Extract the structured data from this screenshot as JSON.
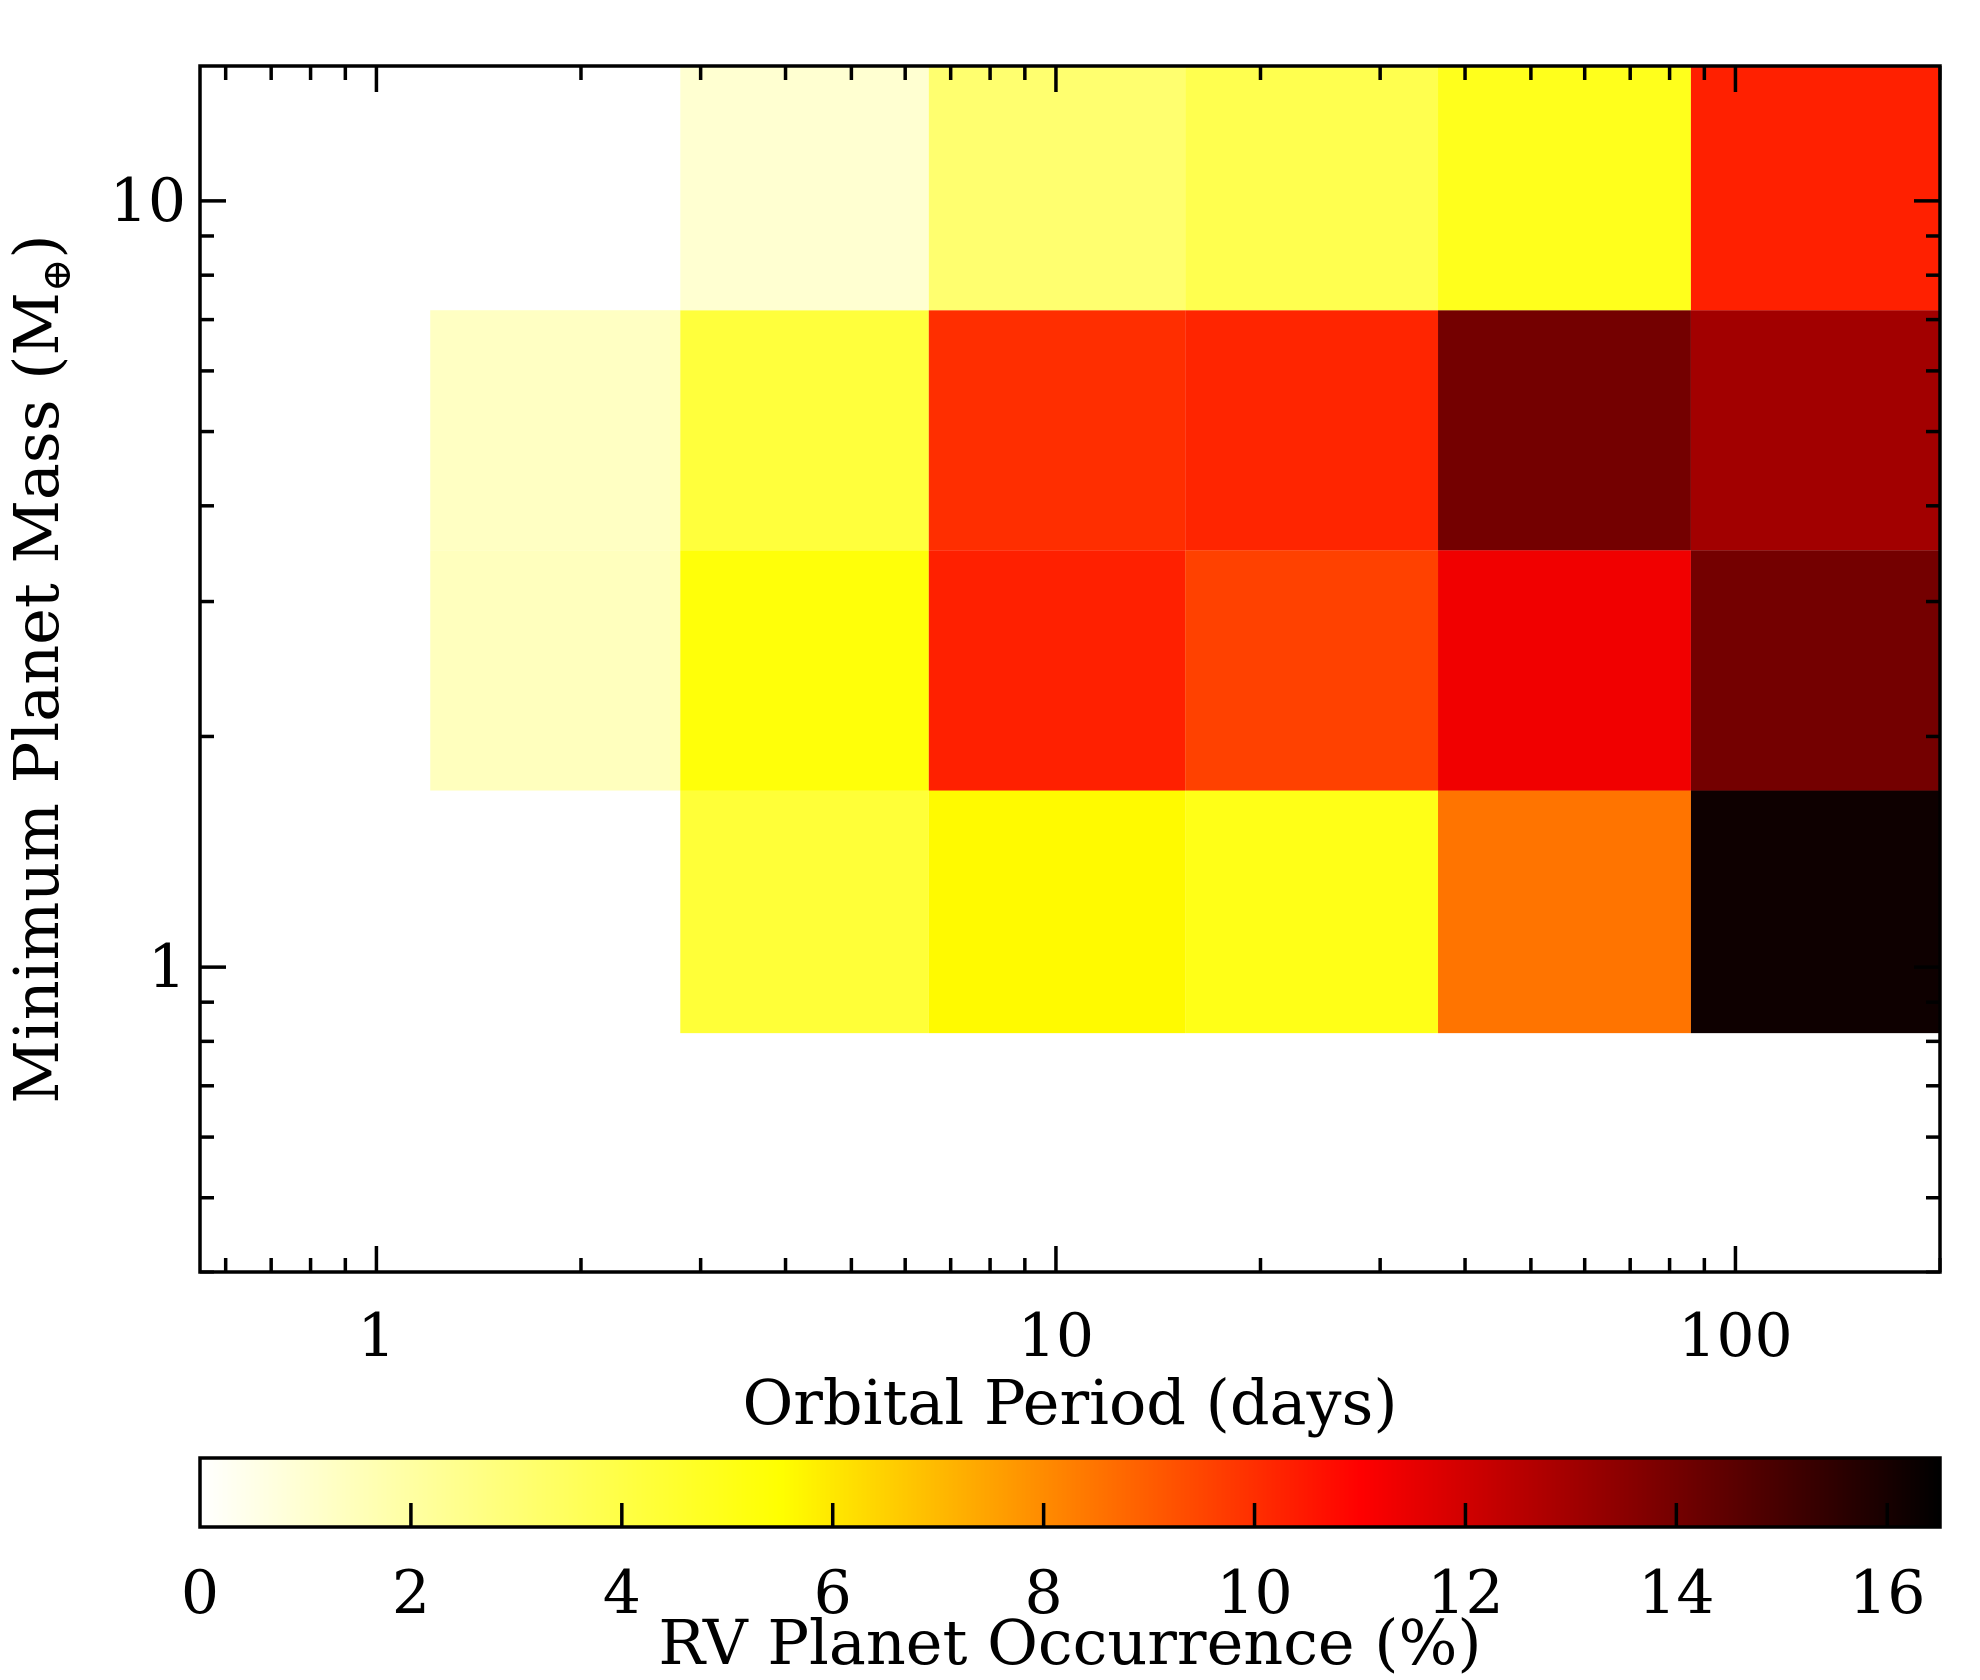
{
  "chart_data": {
    "type": "heatmap",
    "xlabel": "Orbital Period (days)",
    "ylabel": "Minimum Planet Mass (M",
    "ylabel_subscript": "⊕",
    "ylabel_close": ")",
    "xscale": "log",
    "yscale": "log",
    "xlim": [
      0.55,
      200
    ],
    "ylim": [
      0.4,
      15
    ],
    "x_tick_labels": [
      "1",
      "10",
      "100"
    ],
    "y_tick_labels": [
      "1",
      "10"
    ],
    "x_bin_edges": [
      1.2,
      2.8,
      6.5,
      15.5,
      36.5,
      86,
      200
    ],
    "y_bin_edges": [
      0.82,
      1.7,
      3.5,
      7.2,
      15
    ],
    "cells": [
      {
        "x": [
          1.2,
          2.8
        ],
        "y": [
          1.7,
          3.5
        ],
        "value": 1.4
      },
      {
        "x": [
          1.2,
          2.8
        ],
        "y": [
          3.5,
          7.2
        ],
        "value": 1.3
      },
      {
        "x": [
          2.8,
          6.5
        ],
        "y": [
          0.82,
          1.7
        ],
        "value": 4.3
      },
      {
        "x": [
          2.8,
          6.5
        ],
        "y": [
          1.7,
          3.5
        ],
        "value": 5.3
      },
      {
        "x": [
          2.8,
          6.5
        ],
        "y": [
          3.5,
          7.2
        ],
        "value": 4.2
      },
      {
        "x": [
          2.8,
          6.5
        ],
        "y": [
          7.2,
          15
        ],
        "value": 1.0
      },
      {
        "x": [
          6.5,
          15.5
        ],
        "y": [
          0.82,
          1.7
        ],
        "value": 5.6
      },
      {
        "x": [
          6.5,
          15.5
        ],
        "y": [
          1.7,
          3.5
        ],
        "value": 10.3
      },
      {
        "x": [
          6.5,
          15.5
        ],
        "y": [
          3.5,
          7.2
        ],
        "value": 10.0
      },
      {
        "x": [
          6.5,
          15.5
        ],
        "y": [
          7.2,
          15
        ],
        "value": 3.1
      },
      {
        "x": [
          15.5,
          36.5
        ],
        "y": [
          0.82,
          1.7
        ],
        "value": 5.0
      },
      {
        "x": [
          15.5,
          36.5
        ],
        "y": [
          1.7,
          3.5
        ],
        "value": 9.6
      },
      {
        "x": [
          15.5,
          36.5
        ],
        "y": [
          3.5,
          7.2
        ],
        "value": 10.2
      },
      {
        "x": [
          15.5,
          36.5
        ],
        "y": [
          7.2,
          15
        ],
        "value": 3.8
      },
      {
        "x": [
          36.5,
          86
        ],
        "y": [
          0.82,
          1.7
        ],
        "value": 8.5
      },
      {
        "x": [
          36.5,
          86
        ],
        "y": [
          1.7,
          3.5
        ],
        "value": 11.3
      },
      {
        "x": [
          36.5,
          86
        ],
        "y": [
          3.5,
          7.2
        ],
        "value": 14.0
      },
      {
        "x": [
          36.5,
          86
        ],
        "y": [
          7.2,
          15
        ],
        "value": 4.9
      },
      {
        "x": [
          86,
          200
        ],
        "y": [
          0.82,
          1.7
        ],
        "value": 16.2
      },
      {
        "x": [
          86,
          200
        ],
        "y": [
          1.7,
          3.5
        ],
        "value": 14.0
      },
      {
        "x": [
          86,
          200
        ],
        "y": [
          3.5,
          7.2
        ],
        "value": 13.0
      },
      {
        "x": [
          86,
          200
        ],
        "y": [
          7.2,
          15
        ],
        "value": 10.3
      }
    ],
    "colorbar": {
      "label": "RV Planet Occurrence (%)",
      "range": [
        0,
        16.5
      ],
      "ticks": [
        0,
        2,
        4,
        6,
        8,
        10,
        12,
        14,
        16
      ],
      "tick_labels": [
        "0",
        "2",
        "4",
        "6",
        "8",
        "10",
        "12",
        "14",
        "16"
      ],
      "colormap": "hot_r",
      "colormap_stops": [
        "#ffffff",
        "#ffff00",
        "#ff0000",
        "#000000"
      ]
    },
    "grid": false
  }
}
